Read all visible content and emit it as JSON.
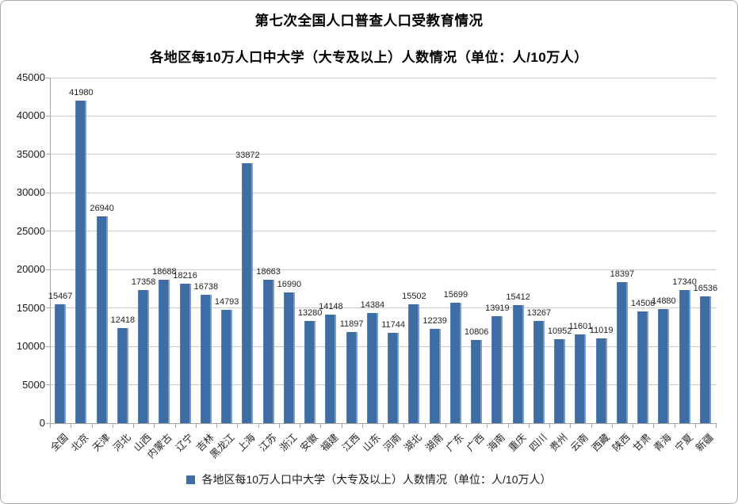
{
  "page": {
    "title": "第七次全国人口普查人口受教育情况",
    "subtitle": "各地区每10万人口中大学（大专及以上）人数情况（单位：人/10万人）"
  },
  "legend": {
    "label": "各地区每10万人口中大学（大专及以上）人数情况（单位：人/10万人）",
    "swatch_color": "#3e6ca5"
  },
  "chart_data": {
    "type": "bar",
    "title": "第七次全国人口普查人口受教育情况",
    "subtitle": "各地区每10万人口中大学（大专及以上）人数情况（单位：人/10万人）",
    "categories": [
      "全国",
      "北京",
      "天津",
      "河北",
      "山西",
      "内蒙古",
      "辽宁",
      "吉林",
      "黑龙江",
      "上海",
      "江苏",
      "浙江",
      "安徽",
      "福建",
      "江西",
      "山东",
      "河南",
      "湖北",
      "湖南",
      "广东",
      "广西",
      "海南",
      "重庆",
      "四川",
      "贵州",
      "云南",
      "西藏",
      "陕西",
      "甘肃",
      "青海",
      "宁夏",
      "新疆"
    ],
    "values": [
      15467,
      41980,
      26940,
      12418,
      17358,
      18688,
      18216,
      16738,
      14793,
      33872,
      18663,
      16990,
      13280,
      14148,
      11897,
      14384,
      11744,
      15502,
      12239,
      15699,
      10806,
      13919,
      15412,
      13267,
      10952,
      11601,
      11019,
      18397,
      14506,
      14880,
      17340,
      16536
    ],
    "ylim": [
      0,
      45000
    ],
    "ytick_step": 5000,
    "grid": true,
    "data_labels": true,
    "legend_position": "bottom",
    "bar_color": "#3e6ca5",
    "grid_color": "#c9c9c9",
    "axis_color": "#a6a6a6",
    "xlabel": "",
    "ylabel": ""
  }
}
